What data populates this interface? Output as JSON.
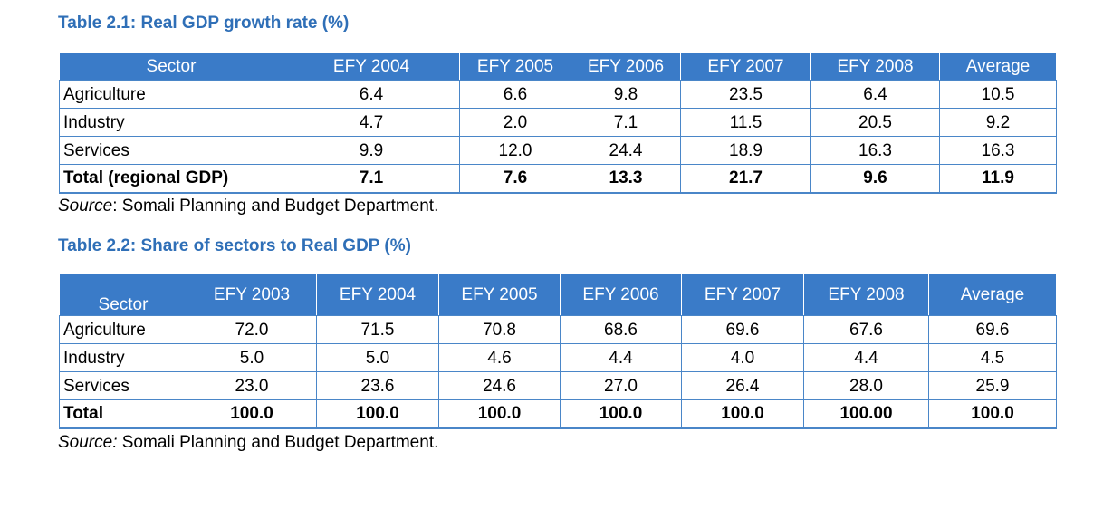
{
  "table1": {
    "title": "Table 2.1: Real GDP growth rate (%)",
    "headers": [
      "Sector",
      "EFY 2004",
      "EFY 2005",
      "EFY 2006",
      "EFY 2007",
      "EFY 2008",
      "Average"
    ],
    "rows": [
      [
        "Agriculture",
        "6.4",
        "6.6",
        "9.8",
        "23.5",
        "6.4",
        "10.5"
      ],
      [
        "Industry",
        "4.7",
        "2.0",
        "7.1",
        "11.5",
        "20.5",
        "9.2"
      ],
      [
        "Services",
        "9.9",
        "12.0",
        "24.4",
        "18.9",
        "16.3",
        "16.3"
      ],
      [
        "Total (regional GDP)",
        "7.1",
        "7.6",
        "13.3",
        "21.7",
        "9.6",
        "11.9"
      ]
    ],
    "source_label": "Source",
    "source_text": ": Somali Planning and Budget Department."
  },
  "table2": {
    "title": "Table 2.2: Share of sectors to Real GDP (%)",
    "headers": [
      "Sector",
      "EFY 2003",
      "EFY 2004",
      "EFY 2005",
      "EFY 2006",
      "EFY 2007",
      "EFY 2008",
      "Average"
    ],
    "rows": [
      [
        "Agriculture",
        "72.0",
        "71.5",
        "70.8",
        "68.6",
        "69.6",
        "67.6",
        "69.6"
      ],
      [
        "Industry",
        "5.0",
        "5.0",
        "4.6",
        "4.4",
        "4.0",
        "4.4",
        "4.5"
      ],
      [
        "Services",
        "23.0",
        "23.6",
        "24.6",
        "27.0",
        "26.4",
        "28.0",
        "25.9"
      ],
      [
        "Total",
        "100.0",
        "100.0",
        "100.0",
        "100.0",
        "100.0",
        "100.00",
        "100.0"
      ]
    ],
    "source_label": "Source:",
    "source_text": " Somali Planning and Budget Department."
  },
  "colors": {
    "title": "#2f6fb7",
    "header_bg": "#3a7bc8",
    "header_text": "#ffffff",
    "border": "#4a86c8"
  }
}
